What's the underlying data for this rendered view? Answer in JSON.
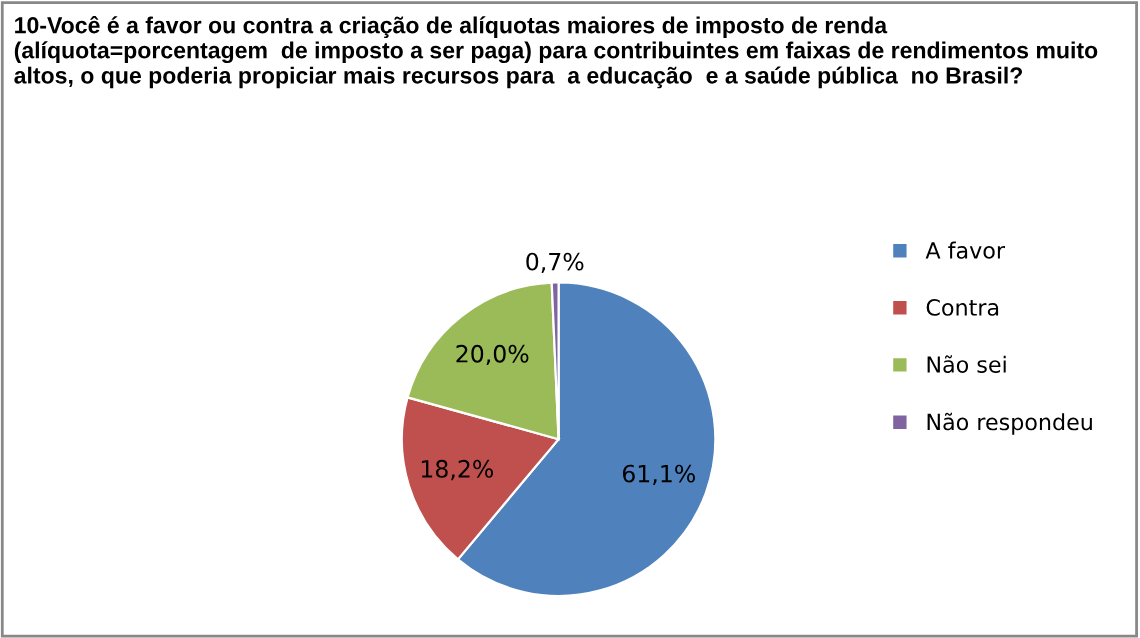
{
  "chart_data": {
    "type": "pie",
    "title": "10-Você é a favor ou contra a criação de alíquotas maiores de imposto de renda (alíquota=porcentagem  de imposto a ser paga) para contribuintes em faixas de rendimentos muito altos, o que poderia propiciar mais recursos para  a educação  e a saúde pública  no Brasil?",
    "categories": [
      "A favor",
      "Contra",
      "Não sei",
      "Não respondeu"
    ],
    "values": [
      61.1,
      18.2,
      20.0,
      0.7
    ],
    "colors": [
      "#4f81bd",
      "#c0504d",
      "#9bbb59",
      "#8064a2"
    ],
    "value_labels": [
      "61,1%",
      "18,2%",
      "20,0%",
      "0,7%"
    ],
    "legend": "right"
  }
}
